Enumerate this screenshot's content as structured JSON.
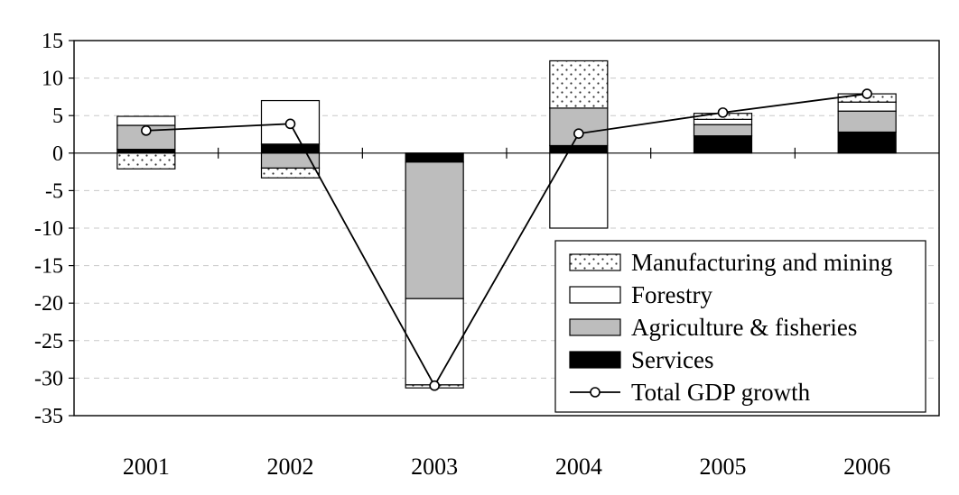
{
  "chart_data": {
    "type": "bar",
    "stacked": true,
    "categories": [
      "2001",
      "2002",
      "2003",
      "2004",
      "2005",
      "2006"
    ],
    "ylim": [
      -35,
      15
    ],
    "yticks": [
      15,
      10,
      5,
      0,
      -5,
      -10,
      -15,
      -20,
      -25,
      -30,
      -35
    ],
    "grid": true,
    "legend_position": "bottom-right",
    "series": [
      {
        "name": "Services",
        "pattern": "black",
        "color": "#000000",
        "values": [
          0.5,
          1.2,
          -1.2,
          1.0,
          2.3,
          2.8
        ]
      },
      {
        "name": "Agriculture & fisheries",
        "pattern": "gray",
        "color": "#bdbdbd",
        "values": [
          3.2,
          -2.0,
          -18.2,
          5.0,
          1.5,
          2.8
        ]
      },
      {
        "name": "Forestry",
        "pattern": "white",
        "color": "#ffffff",
        "values": [
          1.2,
          5.8,
          -11.5,
          -10.0,
          0.7,
          1.2
        ]
      },
      {
        "name": "Manufacturing and mining",
        "pattern": "dots",
        "color": "#ffffff",
        "values": [
          -2.1,
          -1.3,
          -0.4,
          6.3,
          0.8,
          1.1
        ]
      }
    ],
    "line": {
      "name": "Total GDP growth",
      "values": [
        3.0,
        3.9,
        -31.0,
        2.6,
        5.4,
        7.9
      ]
    },
    "legend_order": [
      "Manufacturing and mining",
      "Forestry",
      "Agriculture & fisheries",
      "Services",
      "Total GDP growth"
    ]
  }
}
